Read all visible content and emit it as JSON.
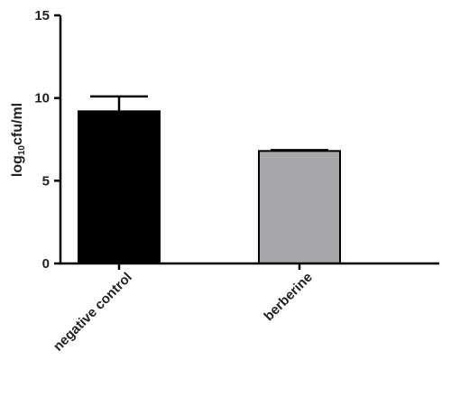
{
  "chart_data": {
    "type": "bar",
    "ylabel": [
      "log",
      "10",
      "cfu/ml"
    ],
    "categories": [
      "negative control",
      "berberine"
    ],
    "values": [
      9.2,
      6.8
    ],
    "errors": [
      0.9,
      0.05
    ],
    "colors": [
      "#000000",
      "#a7a7a9"
    ],
    "ylim": [
      0,
      15
    ],
    "yticks": [
      0,
      5,
      10,
      15
    ]
  }
}
